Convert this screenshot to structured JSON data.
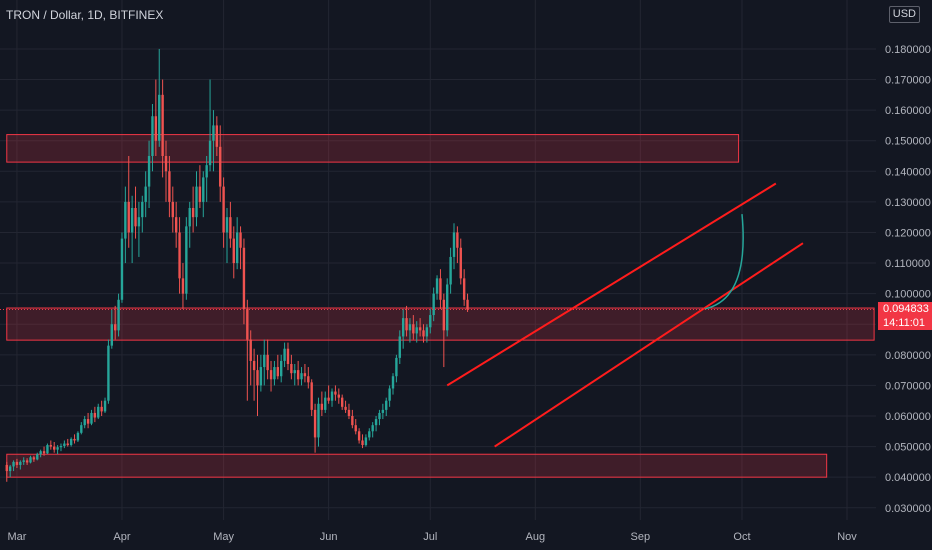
{
  "header": {
    "title": "TRON / Dollar, 1D, BITFINEX",
    "currency": "USD"
  },
  "last_price": {
    "value": "0.094833",
    "countdown": "14:11:01"
  },
  "chart_data": {
    "type": "candlestick",
    "title": "TRON / Dollar, 1D, BITFINEX",
    "xlabel": "",
    "ylabel": "",
    "x_ticks": [
      "Mar",
      "Apr",
      "May",
      "Jun",
      "Jul",
      "Aug",
      "Sep",
      "Oct",
      "Nov"
    ],
    "y_ticks": [
      "0.030000",
      "0.040000",
      "0.050000",
      "0.060000",
      "0.070000",
      "0.080000",
      "0.090000",
      "0.100000",
      "0.110000",
      "0.120000",
      "0.130000",
      "0.140000",
      "0.150000",
      "0.160000",
      "0.170000",
      "0.180000"
    ],
    "ylim": [
      0.026,
      0.196
    ],
    "y_axis_side": "right",
    "grid": true,
    "colors": {
      "background": "#131722",
      "grid": "#232632",
      "up": "#26a69a",
      "down": "#ef5350",
      "zone_fill": "#f2364533",
      "zone_border": "#f23645",
      "channel": "#ff1c1c",
      "projection": "#26a69a",
      "axis_text": "#b2b5be"
    },
    "series": [
      {
        "name": "TRX/USD",
        "start": "2021-02-26",
        "interval": "1D",
        "ohlc": [
          [
            0.044,
            0.045,
            0.0385,
            0.042
          ],
          [
            0.042,
            0.044,
            0.04,
            0.0435
          ],
          [
            0.0435,
            0.0455,
            0.042,
            0.045
          ],
          [
            0.045,
            0.046,
            0.043,
            0.044
          ],
          [
            0.044,
            0.0455,
            0.0425,
            0.045
          ],
          [
            0.045,
            0.0465,
            0.044,
            0.0455
          ],
          [
            0.0455,
            0.0462,
            0.044,
            0.0448
          ],
          [
            0.0448,
            0.047,
            0.0445,
            0.0465
          ],
          [
            0.0465,
            0.047,
            0.045,
            0.0458
          ],
          [
            0.0458,
            0.048,
            0.0455,
            0.0475
          ],
          [
            0.0475,
            0.049,
            0.0465,
            0.0485
          ],
          [
            0.0485,
            0.05,
            0.047,
            0.0478
          ],
          [
            0.0478,
            0.051,
            0.0475,
            0.0505
          ],
          [
            0.0505,
            0.052,
            0.049,
            0.05
          ],
          [
            0.05,
            0.0515,
            0.048,
            0.049
          ],
          [
            0.049,
            0.0505,
            0.0475,
            0.0498
          ],
          [
            0.0498,
            0.051,
            0.0485,
            0.0502
          ],
          [
            0.0502,
            0.052,
            0.0495,
            0.051
          ],
          [
            0.051,
            0.0525,
            0.05,
            0.0505
          ],
          [
            0.0505,
            0.053,
            0.05,
            0.0525
          ],
          [
            0.0525,
            0.054,
            0.051,
            0.052
          ],
          [
            0.052,
            0.055,
            0.0515,
            0.0545
          ],
          [
            0.0545,
            0.058,
            0.054,
            0.057
          ],
          [
            0.057,
            0.06,
            0.056,
            0.059
          ],
          [
            0.059,
            0.061,
            0.056,
            0.0575
          ],
          [
            0.0575,
            0.062,
            0.057,
            0.061
          ],
          [
            0.061,
            0.063,
            0.058,
            0.0595
          ],
          [
            0.0595,
            0.064,
            0.059,
            0.063
          ],
          [
            0.063,
            0.065,
            0.06,
            0.0615
          ],
          [
            0.0615,
            0.066,
            0.061,
            0.065
          ],
          [
            0.065,
            0.085,
            0.064,
            0.083
          ],
          [
            0.083,
            0.095,
            0.082,
            0.09
          ],
          [
            0.09,
            0.096,
            0.085,
            0.088
          ],
          [
            0.088,
            0.1,
            0.086,
            0.098
          ],
          [
            0.098,
            0.12,
            0.097,
            0.118
          ],
          [
            0.118,
            0.135,
            0.11,
            0.13
          ],
          [
            0.13,
            0.145,
            0.115,
            0.12
          ],
          [
            0.12,
            0.132,
            0.11,
            0.128
          ],
          [
            0.128,
            0.135,
            0.118,
            0.122
          ],
          [
            0.122,
            0.13,
            0.112,
            0.125
          ],
          [
            0.125,
            0.132,
            0.12,
            0.13
          ],
          [
            0.13,
            0.14,
            0.125,
            0.135
          ],
          [
            0.135,
            0.15,
            0.128,
            0.145
          ],
          [
            0.145,
            0.162,
            0.14,
            0.158
          ],
          [
            0.158,
            0.17,
            0.145,
            0.15
          ],
          [
            0.15,
            0.18,
            0.148,
            0.165
          ],
          [
            0.165,
            0.17,
            0.138,
            0.145
          ],
          [
            0.145,
            0.15,
            0.13,
            0.14
          ],
          [
            0.14,
            0.145,
            0.125,
            0.13
          ],
          [
            0.13,
            0.135,
            0.12,
            0.125
          ],
          [
            0.125,
            0.13,
            0.115,
            0.12
          ],
          [
            0.12,
            0.125,
            0.1,
            0.105
          ],
          [
            0.105,
            0.11,
            0.095,
            0.1
          ],
          [
            0.1,
            0.125,
            0.098,
            0.122
          ],
          [
            0.122,
            0.13,
            0.115,
            0.128
          ],
          [
            0.128,
            0.135,
            0.12,
            0.125
          ],
          [
            0.125,
            0.14,
            0.122,
            0.135
          ],
          [
            0.135,
            0.142,
            0.128,
            0.13
          ],
          [
            0.13,
            0.14,
            0.125,
            0.138
          ],
          [
            0.138,
            0.145,
            0.13,
            0.142
          ],
          [
            0.142,
            0.17,
            0.14,
            0.15
          ],
          [
            0.15,
            0.16,
            0.14,
            0.155
          ],
          [
            0.155,
            0.158,
            0.145,
            0.148
          ],
          [
            0.148,
            0.155,
            0.13,
            0.135
          ],
          [
            0.135,
            0.138,
            0.115,
            0.12
          ],
          [
            0.12,
            0.128,
            0.11,
            0.125
          ],
          [
            0.125,
            0.13,
            0.115,
            0.118
          ],
          [
            0.118,
            0.122,
            0.105,
            0.11
          ],
          [
            0.11,
            0.125,
            0.108,
            0.12
          ],
          [
            0.12,
            0.122,
            0.108,
            0.115
          ],
          [
            0.115,
            0.118,
            0.09,
            0.095
          ],
          [
            0.095,
            0.098,
            0.065,
            0.085
          ],
          [
            0.085,
            0.088,
            0.07,
            0.078
          ],
          [
            0.078,
            0.082,
            0.065,
            0.075
          ],
          [
            0.075,
            0.08,
            0.06,
            0.07
          ],
          [
            0.07,
            0.08,
            0.068,
            0.076
          ],
          [
            0.076,
            0.085,
            0.07,
            0.08
          ],
          [
            0.08,
            0.085,
            0.072,
            0.075
          ],
          [
            0.075,
            0.078,
            0.068,
            0.072
          ],
          [
            0.072,
            0.078,
            0.07,
            0.076
          ],
          [
            0.076,
            0.08,
            0.072,
            0.073
          ],
          [
            0.073,
            0.08,
            0.071,
            0.078
          ],
          [
            0.078,
            0.084,
            0.076,
            0.082
          ],
          [
            0.082,
            0.084,
            0.075,
            0.077
          ],
          [
            0.077,
            0.08,
            0.072,
            0.074
          ],
          [
            0.074,
            0.077,
            0.07,
            0.075
          ],
          [
            0.075,
            0.078,
            0.07,
            0.072
          ],
          [
            0.072,
            0.076,
            0.07,
            0.074
          ],
          [
            0.074,
            0.077,
            0.071,
            0.073
          ],
          [
            0.073,
            0.076,
            0.069,
            0.071
          ],
          [
            0.071,
            0.072,
            0.06,
            0.062
          ],
          [
            0.062,
            0.064,
            0.048,
            0.053
          ],
          [
            0.053,
            0.066,
            0.05,
            0.064
          ],
          [
            0.064,
            0.068,
            0.06,
            0.062
          ],
          [
            0.062,
            0.068,
            0.061,
            0.066
          ],
          [
            0.066,
            0.07,
            0.064,
            0.065
          ],
          [
            0.065,
            0.069,
            0.063,
            0.068
          ],
          [
            0.068,
            0.07,
            0.065,
            0.067
          ],
          [
            0.067,
            0.069,
            0.064,
            0.066
          ],
          [
            0.066,
            0.067,
            0.062,
            0.063
          ],
          [
            0.063,
            0.065,
            0.061,
            0.062
          ],
          [
            0.062,
            0.064,
            0.059,
            0.06
          ],
          [
            0.06,
            0.062,
            0.056,
            0.057
          ],
          [
            0.057,
            0.059,
            0.054,
            0.055
          ],
          [
            0.055,
            0.056,
            0.051,
            0.052
          ],
          [
            0.052,
            0.054,
            0.0495,
            0.0505
          ],
          [
            0.0505,
            0.054,
            0.05,
            0.053
          ],
          [
            0.053,
            0.056,
            0.052,
            0.055
          ],
          [
            0.055,
            0.058,
            0.053,
            0.057
          ],
          [
            0.057,
            0.06,
            0.055,
            0.059
          ],
          [
            0.059,
            0.062,
            0.057,
            0.061
          ],
          [
            0.061,
            0.064,
            0.059,
            0.062
          ],
          [
            0.062,
            0.066,
            0.06,
            0.065
          ],
          [
            0.065,
            0.07,
            0.063,
            0.069
          ],
          [
            0.069,
            0.074,
            0.067,
            0.073
          ],
          [
            0.073,
            0.08,
            0.071,
            0.079
          ],
          [
            0.079,
            0.088,
            0.077,
            0.086
          ],
          [
            0.086,
            0.095,
            0.082,
            0.092
          ],
          [
            0.092,
            0.096,
            0.086,
            0.088
          ],
          [
            0.088,
            0.092,
            0.084,
            0.09
          ],
          [
            0.09,
            0.093,
            0.085,
            0.087
          ],
          [
            0.087,
            0.091,
            0.084,
            0.089
          ],
          [
            0.089,
            0.092,
            0.086,
            0.088
          ],
          [
            0.088,
            0.09,
            0.084,
            0.086
          ],
          [
            0.086,
            0.09,
            0.084,
            0.089
          ],
          [
            0.089,
            0.095,
            0.087,
            0.093
          ],
          [
            0.093,
            0.102,
            0.091,
            0.1
          ],
          [
            0.1,
            0.106,
            0.098,
            0.105
          ],
          [
            0.105,
            0.108,
            0.095,
            0.098
          ],
          [
            0.098,
            0.1,
            0.076,
            0.088
          ],
          [
            0.088,
            0.105,
            0.086,
            0.103
          ],
          [
            0.103,
            0.115,
            0.1,
            0.112
          ],
          [
            0.112,
            0.123,
            0.108,
            0.12
          ],
          [
            0.12,
            0.122,
            0.11,
            0.115
          ],
          [
            0.115,
            0.118,
            0.103,
            0.105
          ],
          [
            0.105,
            0.108,
            0.096,
            0.098
          ],
          [
            0.098,
            0.1,
            0.094,
            0.0948
          ]
        ]
      }
    ],
    "annotations": [
      {
        "type": "zone",
        "label": "resistance zone",
        "y_top": 0.152,
        "y_bottom": 0.143,
        "x_start": "2021-02-26",
        "x_end": "2021-09-30"
      },
      {
        "type": "zone",
        "label": "support zone",
        "y_top": 0.0953,
        "y_bottom": 0.0848,
        "x_start": "2021-02-26",
        "x_end": "2021-11-09"
      },
      {
        "type": "zone",
        "label": "bottom zone",
        "y_top": 0.0475,
        "y_bottom": 0.04,
        "x_start": "2021-02-26",
        "x_end": "2021-10-26"
      },
      {
        "type": "line",
        "label": "channel upper",
        "from": [
          "2021-07-06",
          0.07
        ],
        "to": [
          "2021-10-11",
          0.136
        ]
      },
      {
        "type": "line",
        "label": "channel lower",
        "from": [
          "2021-07-20",
          0.05
        ],
        "to": [
          "2021-10-19",
          0.1165
        ]
      },
      {
        "type": "curve",
        "label": "projection",
        "from": [
          "2021-09-20",
          0.095
        ],
        "to": [
          "2021-10-01",
          0.126
        ]
      }
    ]
  }
}
